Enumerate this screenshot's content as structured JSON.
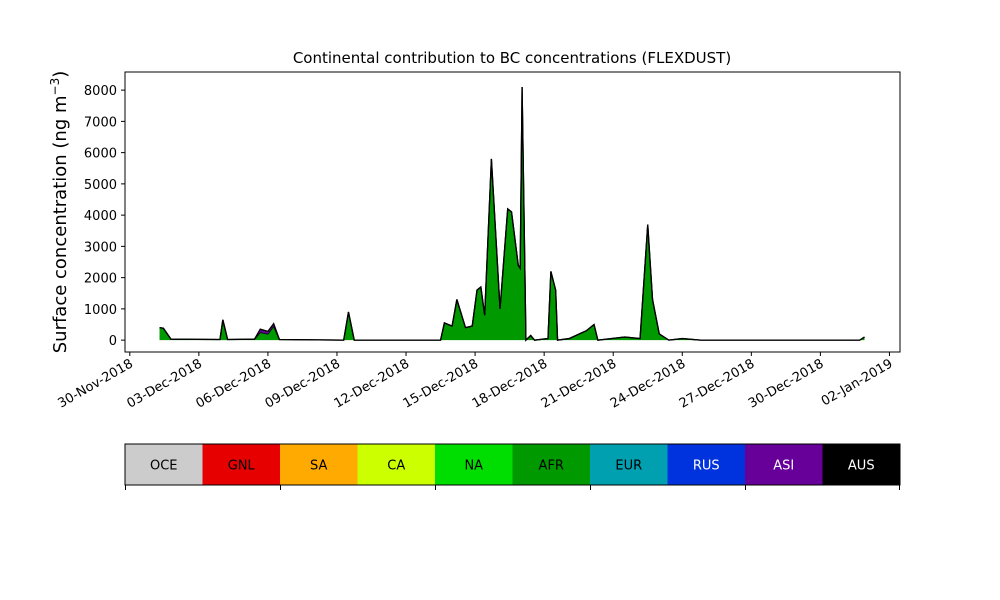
{
  "chart_data": {
    "type": "stacked_area",
    "title": "Continental contribution to BC concentrations (FLEXDUST)",
    "ylabel": {
      "text": "Surface concentration (ng m",
      "superscript": "−3",
      "suffix": ")"
    },
    "x": [
      "2018-12-01T07:00",
      "2018-12-01T11:00",
      "2018-12-01T19:00",
      "2018-12-03T22:00",
      "2018-12-04T01:00",
      "2018-12-04T06:00",
      "2018-12-05T10:00",
      "2018-12-05T16:00",
      "2018-12-06T00:00",
      "2018-12-06T06:00",
      "2018-12-06T12:00",
      "2018-12-09T07:00",
      "2018-12-09T12:00",
      "2018-12-09T18:00",
      "2018-12-13T12:00",
      "2018-12-13T16:00",
      "2018-12-14T00:00",
      "2018-12-14T05:00",
      "2018-12-14T14:00",
      "2018-12-14T21:00",
      "2018-12-15T02:00",
      "2018-12-15T06:00",
      "2018-12-15T10:00",
      "2018-12-15T17:00",
      "2018-12-16T02:00",
      "2018-12-16T10:00",
      "2018-12-16T14:00",
      "2018-12-16T21:00",
      "2018-12-16T23:00",
      "2018-12-17T01:00",
      "2018-12-17T05:00",
      "2018-12-17T10:00",
      "2018-12-17T14:00",
      "2018-12-18T04:00",
      "2018-12-18T07:00",
      "2018-12-18T12:00",
      "2018-12-18T14:00",
      "2018-12-19T02:00",
      "2018-12-19T20:00",
      "2018-12-20T04:00",
      "2018-12-20T08:00",
      "2018-12-21T12:00",
      "2018-12-22T04:00",
      "2018-12-22T12:00",
      "2018-12-22T17:00",
      "2018-12-23T00:00",
      "2018-12-23T10:00",
      "2018-12-24T00:00",
      "2018-12-24T19:00",
      "2018-12-31T17:00",
      "2018-12-31T22:00"
    ],
    "series": [
      {
        "name": "AFR",
        "color": "#009900",
        "values": [
          400,
          380,
          30,
          20,
          650,
          20,
          30,
          250,
          200,
          450,
          20,
          0,
          900,
          0,
          0,
          550,
          450,
          1300,
          400,
          450,
          1600,
          1700,
          800,
          5800,
          1000,
          4200,
          4100,
          2400,
          2300,
          8100,
          0,
          150,
          0,
          50,
          2200,
          1600,
          0,
          50,
          300,
          500,
          0,
          100,
          50,
          3700,
          1300,
          200,
          0,
          50,
          0,
          0,
          100
        ]
      },
      {
        "name": "ASI",
        "color": "#660099",
        "values": [
          0,
          0,
          0,
          0,
          0,
          0,
          0,
          100,
          80,
          80,
          0,
          0,
          0,
          0,
          0,
          0,
          0,
          0,
          0,
          0,
          0,
          0,
          0,
          0,
          0,
          0,
          0,
          0,
          0,
          0,
          0,
          0,
          0,
          0,
          0,
          0,
          0,
          0,
          0,
          0,
          0,
          0,
          0,
          0,
          0,
          0,
          0,
          0,
          0,
          0,
          0
        ]
      }
    ],
    "xlim": [
      "2018-11-29T19:00",
      "2019-01-02T11:00"
    ],
    "xticks": [
      {
        "value": "2018-11-30",
        "label": "30-Nov-2018"
      },
      {
        "value": "2018-12-03",
        "label": "03-Dec-2018"
      },
      {
        "value": "2018-12-06",
        "label": "06-Dec-2018"
      },
      {
        "value": "2018-12-09",
        "label": "09-Dec-2018"
      },
      {
        "value": "2018-12-12",
        "label": "12-Dec-2018"
      },
      {
        "value": "2018-12-15",
        "label": "15-Dec-2018"
      },
      {
        "value": "2018-12-18",
        "label": "18-Dec-2018"
      },
      {
        "value": "2018-12-21",
        "label": "21-Dec-2018"
      },
      {
        "value": "2018-12-24",
        "label": "24-Dec-2018"
      },
      {
        "value": "2018-12-27",
        "label": "27-Dec-2018"
      },
      {
        "value": "2018-12-30",
        "label": "30-Dec-2018"
      },
      {
        "value": "2019-01-02",
        "label": "02-Jan-2019"
      }
    ],
    "ylim": [
      -380,
      8580
    ],
    "yticks": [
      0,
      1000,
      2000,
      3000,
      4000,
      5000,
      6000,
      7000,
      8000
    ],
    "colorbar": {
      "labels": [
        "OCE",
        "GNL",
        "SA",
        "CA",
        "NA",
        "AFR",
        "EUR",
        "RUS",
        "ASI",
        "AUS"
      ],
      "colors": [
        "#cccccc",
        "#e60000",
        "#ffaa00",
        "#ccff00",
        "#00dd00",
        "#009900",
        "#00a0b0",
        "#0033dd",
        "#660099",
        "#000000"
      ]
    }
  }
}
